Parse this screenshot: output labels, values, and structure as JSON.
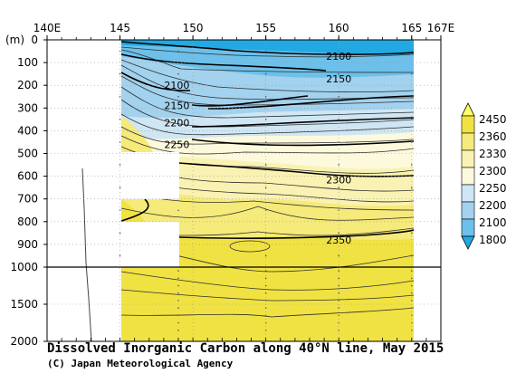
{
  "chart_data": {
    "type": "heatmap",
    "title": "Dissolved Inorganic Carbon along 40°N line, May 2015",
    "credit": "(C) Japan Meteorological Agency",
    "x_axis": {
      "ticks": [
        {
          "lon": 140,
          "label": "140E"
        },
        {
          "lon": 145,
          "label": "145"
        },
        {
          "lon": 150,
          "label": "150"
        },
        {
          "lon": 155,
          "label": "155"
        },
        {
          "lon": 160,
          "label": "160"
        },
        {
          "lon": 165,
          "label": "165"
        },
        {
          "lon": 167,
          "label": "167E"
        }
      ],
      "range": [
        140,
        167
      ]
    },
    "y_axis": {
      "unit_label": "(m)",
      "upper_ticks": [
        0,
        100,
        200,
        300,
        400,
        500,
        600,
        700,
        800,
        900,
        1000
      ],
      "lower_ticks": [
        1500,
        2000
      ],
      "range": [
        0,
        2000
      ],
      "scale_break_at": 1000
    },
    "colorbar": {
      "labels": [
        "2450",
        "2360",
        "2330",
        "2300",
        "2250",
        "2200",
        "2100",
        "1800"
      ],
      "colors": [
        "#ffff66",
        "#f0e242",
        "#f5ea7a",
        "#f9f2b2",
        "#fcf9dc",
        "#cfe6f4",
        "#a2d2ee",
        "#6cc0ea",
        "#22a9e2"
      ]
    },
    "contour_labels": [
      {
        "text": "2100",
        "lon": 160.0,
        "depth": 72
      },
      {
        "text": "2100",
        "lon": 148.9,
        "depth": 200
      },
      {
        "text": "2150",
        "lon": 160.0,
        "depth": 172
      },
      {
        "text": "2150",
        "lon": 148.9,
        "depth": 288
      },
      {
        "text": "2200",
        "lon": 148.9,
        "depth": 364
      },
      {
        "text": "2250",
        "lon": 148.9,
        "depth": 460
      },
      {
        "text": "2300",
        "lon": 160.0,
        "depth": 615
      },
      {
        "text": "2350",
        "lon": 160.0,
        "depth": 880
      }
    ],
    "station_lons": [
      145,
      149,
      155,
      160,
      165
    ]
  }
}
